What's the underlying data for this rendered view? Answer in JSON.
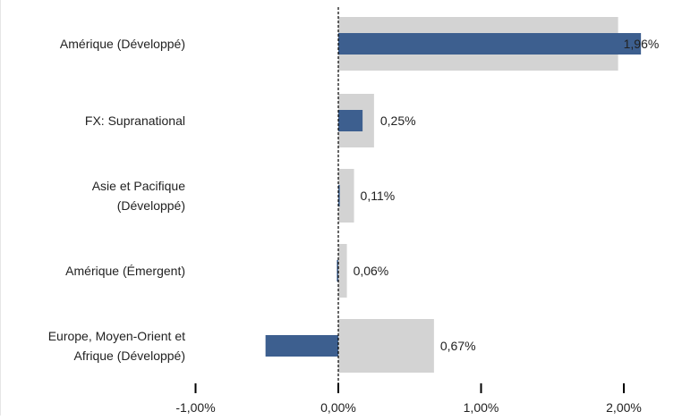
{
  "chart_data": {
    "type": "bar",
    "orientation": "horizontal",
    "categories": [
      "Amérique (Développé)",
      "FX: Supranational",
      "Asie et Pacifique (Développé)",
      "Amérique (Émergent)",
      "Europe, Moyen-Orient et Afrique (Développé)"
    ],
    "category_lines": [
      [
        "Amérique (Développé)"
      ],
      [
        "FX: Supranational"
      ],
      [
        "Asie et Pacifique",
        "(Développé)"
      ],
      [
        "Amérique (Émergent)"
      ],
      [
        "Europe, Moyen-Orient et",
        "Afrique (Développé)"
      ]
    ],
    "series": [
      {
        "role": "background",
        "color": "#d3d3d3",
        "values": [
          1.96,
          0.25,
          0.11,
          0.06,
          0.67
        ]
      },
      {
        "role": "foreground",
        "color": "#3d5f8f",
        "values": [
          2.12,
          0.17,
          0.01,
          -0.01,
          -0.51
        ]
      }
    ],
    "value_labels": [
      "1,96%",
      "0,25%",
      "0,11%",
      "0,06%",
      "0,67%"
    ],
    "xlim": [
      -1.0,
      2.0
    ],
    "x_ticks": [
      -1.0,
      0.0,
      1.0,
      2.0
    ],
    "x_tick_labels": [
      "-1,00%",
      "0,00%",
      "1,00%",
      "2,00%"
    ],
    "zero_line": "dashed",
    "grid": false,
    "legend": "none"
  }
}
